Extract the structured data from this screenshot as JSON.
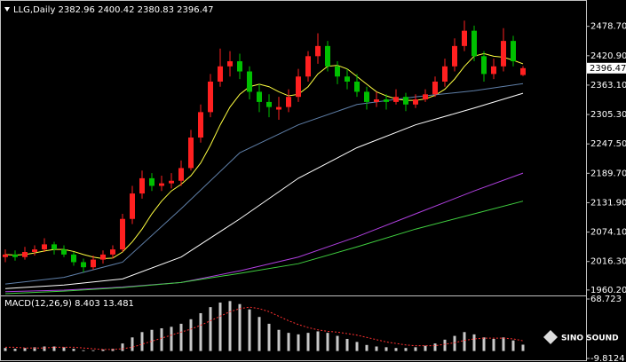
{
  "chart_data": [
    {
      "type": "candlestick",
      "title": "LLG,Daily  2382.96 2400.42 2380.83 2396.47",
      "up_color": "#ff2020",
      "down_color": "#00c000",
      "open": [
        2025,
        2030,
        2025,
        2035,
        2040,
        2050,
        2040,
        2030,
        2015,
        2005,
        2020,
        2030,
        2040,
        2100,
        2150,
        2180,
        2165,
        2170,
        2175,
        2200,
        2260,
        2310,
        2370,
        2400,
        2410,
        2390,
        2350,
        2330,
        2315,
        2320,
        2340,
        2380,
        2420,
        2440,
        2400,
        2380,
        2370,
        2350,
        2330,
        2335,
        2330,
        2340,
        2325,
        2335,
        2345,
        2370,
        2400,
        2440,
        2470,
        2420,
        2385,
        2400,
        2450,
        2382.96
      ],
      "high": [
        2040,
        2038,
        2045,
        2048,
        2062,
        2055,
        2048,
        2035,
        2022,
        2028,
        2038,
        2048,
        2110,
        2165,
        2195,
        2190,
        2185,
        2190,
        2215,
        2275,
        2325,
        2385,
        2435,
        2430,
        2425,
        2400,
        2365,
        2345,
        2340,
        2355,
        2395,
        2430,
        2465,
        2450,
        2410,
        2395,
        2385,
        2360,
        2350,
        2345,
        2355,
        2348,
        2345,
        2355,
        2380,
        2415,
        2455,
        2490,
        2480,
        2430,
        2415,
        2475,
        2460,
        2400.42
      ],
      "low": [
        2015,
        2018,
        2020,
        2028,
        2035,
        2030,
        2025,
        2008,
        1995,
        2000,
        2012,
        2022,
        2035,
        2090,
        2140,
        2155,
        2155,
        2160,
        2165,
        2195,
        2250,
        2300,
        2360,
        2380,
        2375,
        2335,
        2310,
        2300,
        2295,
        2310,
        2330,
        2370,
        2405,
        2390,
        2365,
        2355,
        2340,
        2315,
        2320,
        2315,
        2325,
        2312,
        2318,
        2330,
        2340,
        2360,
        2390,
        2430,
        2410,
        2370,
        2375,
        2390,
        2400,
        2380.83
      ],
      "close": [
        2030,
        2025,
        2035,
        2040,
        2050,
        2040,
        2030,
        2015,
        2005,
        2020,
        2030,
        2040,
        2100,
        2150,
        2180,
        2165,
        2170,
        2175,
        2200,
        2260,
        2310,
        2370,
        2400,
        2410,
        2390,
        2350,
        2330,
        2320,
        2320,
        2340,
        2380,
        2420,
        2440,
        2400,
        2380,
        2370,
        2350,
        2330,
        2335,
        2330,
        2340,
        2325,
        2335,
        2345,
        2370,
        2400,
        2440,
        2470,
        2420,
        2385,
        2400,
        2450,
        2410,
        2396.47
      ],
      "series": [
        {
          "color": "#ffff40",
          "x": [
            0,
            1,
            2,
            3,
            4,
            5,
            6,
            7,
            8,
            9,
            10,
            11,
            12,
            13,
            14,
            15,
            16,
            17,
            18,
            19,
            20,
            21,
            22,
            23,
            24,
            25,
            26,
            27,
            28,
            29,
            30,
            31,
            32,
            33,
            34,
            35,
            36,
            37,
            38,
            39,
            40,
            41,
            42,
            43,
            44,
            45,
            46,
            47,
            48,
            49,
            50,
            51,
            52,
            53
          ],
          "values": [
            2030,
            2029,
            2030,
            2033,
            2037,
            2040,
            2040,
            2036,
            2030,
            2025,
            2022,
            2023,
            2035,
            2055,
            2080,
            2110,
            2135,
            2155,
            2168,
            2185,
            2210,
            2245,
            2285,
            2320,
            2345,
            2360,
            2365,
            2360,
            2350,
            2342,
            2345,
            2360,
            2385,
            2400,
            2402,
            2395,
            2380,
            2365,
            2350,
            2342,
            2336,
            2333,
            2333,
            2336,
            2343,
            2355,
            2375,
            2400,
            2420,
            2425,
            2420,
            2418,
            2412,
            2405
          ]
        },
        {
          "color": "#5f7fa8",
          "x": [
            0,
            6,
            12,
            18,
            24,
            30,
            36,
            42,
            48,
            53
          ],
          "values": [
            1972,
            1985,
            2015,
            2120,
            2230,
            2285,
            2325,
            2340,
            2352,
            2366
          ]
        },
        {
          "color": "#ffffff",
          "x": [
            0,
            6,
            12,
            18,
            24,
            30,
            36,
            42,
            48,
            53
          ],
          "values": [
            1963,
            1970,
            1982,
            2025,
            2100,
            2180,
            2240,
            2285,
            2318,
            2347
          ]
        },
        {
          "color": "#b040e0",
          "x": [
            0,
            6,
            12,
            18,
            24,
            30,
            36,
            42,
            48,
            53
          ],
          "values": [
            1957,
            1960,
            1966,
            1975,
            1998,
            2025,
            2065,
            2110,
            2155,
            2190
          ]
        },
        {
          "color": "#40d040",
          "x": [
            0,
            6,
            12,
            18,
            24,
            30,
            36,
            42,
            48,
            53
          ],
          "values": [
            1953,
            1958,
            1965,
            1975,
            1993,
            2012,
            2045,
            2080,
            2110,
            2135
          ]
        }
      ],
      "current_price": 2396.47,
      "ylim": [
        1953,
        2520
      ],
      "yticks": [
        {
          "value": 2478.7,
          "label": "2478.70"
        },
        {
          "value": 2420.9,
          "label": "2420.90"
        },
        {
          "value": 2363.1,
          "label": "2363.10"
        },
        {
          "value": 2305.3,
          "label": "2305.30"
        },
        {
          "value": 2247.5,
          "label": "2247.50"
        },
        {
          "value": 2189.7,
          "label": "2189.70"
        },
        {
          "value": 2131.9,
          "label": "2131.90"
        },
        {
          "value": 2074.1,
          "label": "2074.10"
        },
        {
          "value": 2016.3,
          "label": "2016.30"
        },
        {
          "value": 1960.2,
          "label": "1960.20"
        }
      ]
    },
    {
      "type": "macd",
      "title": "MACD(12,26,9) 8.403 13.481",
      "hist_color": "#c8c8c8",
      "signal_color": "#ff3030",
      "values": [
        4,
        3,
        4,
        5,
        6,
        6,
        5,
        3,
        1,
        1,
        2,
        3,
        10,
        18,
        25,
        28,
        30,
        32,
        36,
        42,
        50,
        58,
        64,
        66,
        62,
        55,
        45,
        36,
        28,
        24,
        22,
        24,
        26,
        24,
        20,
        16,
        12,
        8,
        6,
        5,
        4,
        4,
        5,
        7,
        10,
        15,
        20,
        25,
        22,
        18,
        16,
        18,
        14,
        8.403
      ],
      "signal": [
        5,
        5,
        4,
        4,
        4,
        5,
        5,
        5,
        4,
        3,
        2,
        2,
        3,
        5,
        9,
        13,
        17,
        21,
        25,
        29,
        34,
        40,
        46,
        52,
        56,
        58,
        56,
        52,
        46,
        40,
        35,
        31,
        28,
        26,
        25,
        23,
        21,
        18,
        15,
        12,
        10,
        8,
        7,
        7,
        7,
        9,
        11,
        14,
        16,
        17,
        17,
        17,
        16,
        13.481
      ],
      "ylim": [
        -9.8124,
        68.723
      ],
      "yticks": [
        68.723,
        -9.8124
      ]
    }
  ],
  "watermark": "SINO SOUND"
}
